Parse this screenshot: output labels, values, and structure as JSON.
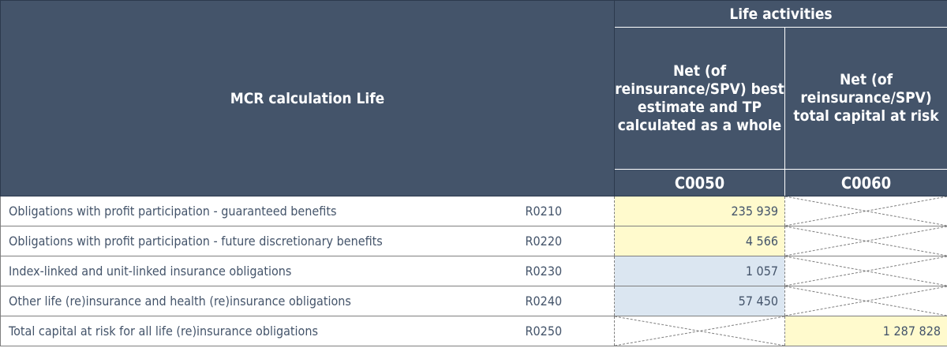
{
  "header": {
    "title": "MCR calculation Life",
    "group": "Life activities",
    "col1_label": "Net (of reinsurance/SPV) best estimate and TP calculated as a whole",
    "col2_label": "Net (of reinsurance/SPV) total capital at risk",
    "col1_code": "C0050",
    "col2_code": "C0060"
  },
  "rows": [
    {
      "label": "Obligations with profit participation - guaranteed benefits",
      "code": "R0210",
      "c0050": "235 939",
      "c0060": ""
    },
    {
      "label": "Obligations with profit participation - future discretionary benefits",
      "code": "R0220",
      "c0050": "4 566",
      "c0060": ""
    },
    {
      "label": "Index-linked and unit-linked insurance obligations",
      "code": "R0230",
      "c0050": "1 057",
      "c0060": ""
    },
    {
      "label": "Other life (re)insurance and health (re)insurance obligations",
      "code": "R0240",
      "c0050": "57 450",
      "c0060": ""
    },
    {
      "label": "Total capital at risk for all life (re)insurance obligations",
      "code": "R0250",
      "c0050": "",
      "c0060": "1 287 828"
    }
  ],
  "colors": {
    "header_bg": "#44546a",
    "input_yellow": "#fffacd",
    "calc_blue": "#dbe6f1",
    "text": "#44546a"
  }
}
